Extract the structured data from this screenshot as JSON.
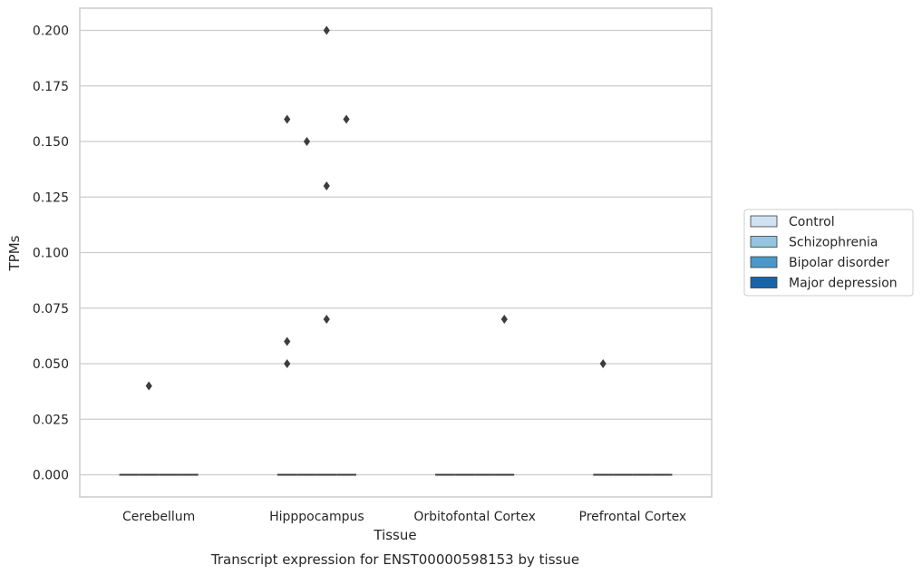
{
  "chart_data": {
    "type": "boxplot",
    "caption": "Transcript expression for ENST00000598153 by tissue",
    "xlabel": "Tissue",
    "ylabel": "TPMs",
    "categories": [
      "Cerebellum",
      "Hipppocampus",
      "Orbitofontal Cortex",
      "Prefrontal Cortex"
    ],
    "ylim": [
      -0.01,
      0.21
    ],
    "yticks": [
      "0.000",
      "0.025",
      "0.050",
      "0.075",
      "0.100",
      "0.125",
      "0.150",
      "0.175",
      "0.200"
    ],
    "grid": "horizontal",
    "legend_position": "right",
    "series": [
      {
        "name": "Control",
        "color": "#d0e1f2"
      },
      {
        "name": "Schizophrenia",
        "color": "#94c4df"
      },
      {
        "name": "Bipolar disorder",
        "color": "#4a98c9"
      },
      {
        "name": "Major depression",
        "color": "#1764ab"
      }
    ],
    "boxes": [
      {
        "category": "Cerebellum",
        "series": "Control",
        "median": 0
      },
      {
        "category": "Cerebellum",
        "series": "Schizophrenia",
        "median": 0
      },
      {
        "category": "Cerebellum",
        "series": "Bipolar disorder",
        "median": 0
      },
      {
        "category": "Cerebellum",
        "series": "Major depression",
        "median": 0
      },
      {
        "category": "Hipppocampus",
        "series": "Control",
        "median": 0
      },
      {
        "category": "Hipppocampus",
        "series": "Schizophrenia",
        "median": 0
      },
      {
        "category": "Hipppocampus",
        "series": "Bipolar disorder",
        "median": 0
      },
      {
        "category": "Hipppocampus",
        "series": "Major depression",
        "median": 0
      },
      {
        "category": "Orbitofontal Cortex",
        "series": "Control",
        "median": 0
      },
      {
        "category": "Orbitofontal Cortex",
        "series": "Schizophrenia",
        "median": 0
      },
      {
        "category": "Orbitofontal Cortex",
        "series": "Bipolar disorder",
        "median": 0
      },
      {
        "category": "Orbitofontal Cortex",
        "series": "Major depression",
        "median": 0
      },
      {
        "category": "Prefrontal Cortex",
        "series": "Control",
        "median": 0
      },
      {
        "category": "Prefrontal Cortex",
        "series": "Schizophrenia",
        "median": 0
      },
      {
        "category": "Prefrontal Cortex",
        "series": "Bipolar disorder",
        "median": 0
      },
      {
        "category": "Prefrontal Cortex",
        "series": "Major depression",
        "median": 0
      }
    ],
    "outliers": [
      {
        "category": "Cerebellum",
        "series": "Schizophrenia",
        "value": 0.04
      },
      {
        "category": "Hipppocampus",
        "series": "Control",
        "value": 0.16
      },
      {
        "category": "Hipppocampus",
        "series": "Control",
        "value": 0.06
      },
      {
        "category": "Hipppocampus",
        "series": "Control",
        "value": 0.05
      },
      {
        "category": "Hipppocampus",
        "series": "Schizophrenia",
        "value": 0.15
      },
      {
        "category": "Hipppocampus",
        "series": "Bipolar disorder",
        "value": 0.2
      },
      {
        "category": "Hipppocampus",
        "series": "Bipolar disorder",
        "value": 0.13
      },
      {
        "category": "Hipppocampus",
        "series": "Bipolar disorder",
        "value": 0.07
      },
      {
        "category": "Hipppocampus",
        "series": "Major depression",
        "value": 0.16
      },
      {
        "category": "Orbitofontal Cortex",
        "series": "Major depression",
        "value": 0.07
      },
      {
        "category": "Prefrontal Cortex",
        "series": "Control",
        "value": 0.05
      }
    ]
  }
}
